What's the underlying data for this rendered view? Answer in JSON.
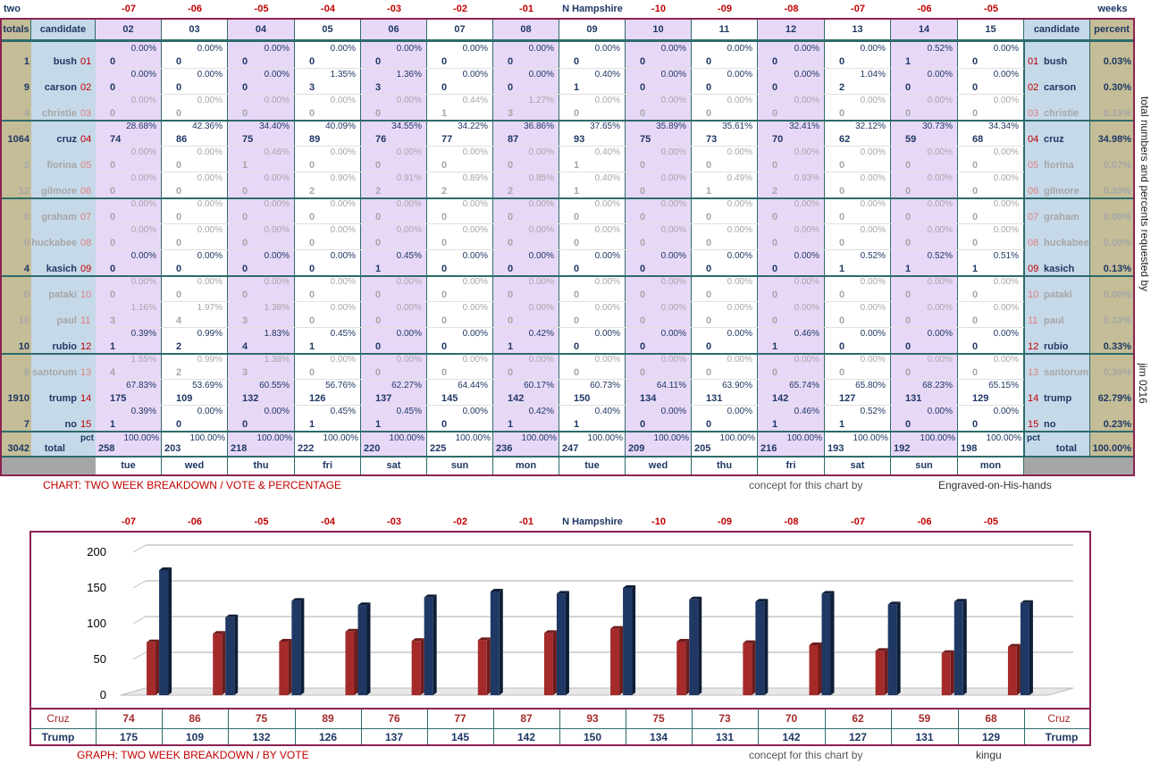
{
  "header": {
    "left": "two",
    "right": "weeks",
    "center": "N Hampshire",
    "day_offsets": [
      "-07",
      "-06",
      "-05",
      "-04",
      "-03",
      "-02",
      "-01",
      "N Hampshire",
      "-10",
      "-09",
      "-08",
      "-07",
      "-06",
      "-05"
    ]
  },
  "columns": {
    "totals": "totals",
    "candidate": "candidate",
    "percent": "percent",
    "days": [
      "02",
      "03",
      "04",
      "05",
      "06",
      "07",
      "08",
      "09",
      "10",
      "11",
      "12",
      "13",
      "14",
      "15"
    ],
    "weekdays": [
      "tue",
      "wed",
      "thu",
      "fri",
      "sat",
      "sun",
      "mon",
      "tue",
      "wed",
      "thu",
      "fri",
      "sat",
      "sun",
      "mon"
    ]
  },
  "candidates": [
    {
      "name": "bush",
      "num": "01",
      "total": "1",
      "pct": "0.03%",
      "dim": false,
      "v": [
        "0",
        "0",
        "0",
        "0",
        "0",
        "0",
        "0",
        "0",
        "0",
        "0",
        "0",
        "0",
        "1",
        "0"
      ],
      "p": [
        "0.00%",
        "0.00%",
        "0.00%",
        "0.00%",
        "0.00%",
        "0.00%",
        "0.00%",
        "0.00%",
        "0.00%",
        "0.00%",
        "0.00%",
        "0.00%",
        "0.52%",
        "0.00%"
      ]
    },
    {
      "name": "carson",
      "num": "02",
      "total": "9",
      "pct": "0.30%",
      "dim": false,
      "v": [
        "0",
        "0",
        "0",
        "3",
        "3",
        "0",
        "0",
        "1",
        "0",
        "0",
        "0",
        "2",
        "0",
        "0"
      ],
      "p": [
        "0.00%",
        "0.00%",
        "0.00%",
        "1.35%",
        "1.36%",
        "0.00%",
        "0.00%",
        "0.40%",
        "0.00%",
        "0.00%",
        "0.00%",
        "1.04%",
        "0.00%",
        "0.00%"
      ]
    },
    {
      "name": "christie",
      "num": "03",
      "total": "4",
      "pct": "0.13%",
      "dim": true,
      "v": [
        "0",
        "0",
        "0",
        "0",
        "0",
        "1",
        "3",
        "0",
        "0",
        "0",
        "0",
        "0",
        "0",
        "0"
      ],
      "p": [
        "0.00%",
        "0.00%",
        "0.00%",
        "0.00%",
        "0.00%",
        "0.44%",
        "1.27%",
        "0.00%",
        "0.00%",
        "0.00%",
        "0.00%",
        "0.00%",
        "0.00%",
        "0.00%"
      ]
    },
    {
      "name": "cruz",
      "num": "04",
      "total": "1064",
      "pct": "34.98%",
      "dim": false,
      "v": [
        "74",
        "86",
        "75",
        "89",
        "76",
        "77",
        "87",
        "93",
        "75",
        "73",
        "70",
        "62",
        "59",
        "68"
      ],
      "p": [
        "28.68%",
        "42.36%",
        "34.40%",
        "40.09%",
        "34.55%",
        "34.22%",
        "36.86%",
        "37.65%",
        "35.89%",
        "35.61%",
        "32.41%",
        "32.12%",
        "30.73%",
        "34.34%"
      ]
    },
    {
      "name": "fiorina",
      "num": "05",
      "total": "2",
      "pct": "0.07%",
      "dim": true,
      "v": [
        "0",
        "0",
        "1",
        "0",
        "0",
        "0",
        "0",
        "1",
        "0",
        "0",
        "0",
        "0",
        "0",
        "0"
      ],
      "p": [
        "0.00%",
        "0.00%",
        "0.46%",
        "0.00%",
        "0.00%",
        "0.00%",
        "0.00%",
        "0.40%",
        "0.00%",
        "0.00%",
        "0.00%",
        "0.00%",
        "0.00%",
        "0.00%"
      ]
    },
    {
      "name": "gilmore",
      "num": "06",
      "total": "12",
      "pct": "0.39%",
      "dim": true,
      "v": [
        "0",
        "0",
        "0",
        "2",
        "2",
        "2",
        "2",
        "1",
        "0",
        "1",
        "2",
        "0",
        "0",
        "0"
      ],
      "p": [
        "0.00%",
        "0.00%",
        "0.00%",
        "0.90%",
        "0.91%",
        "0.89%",
        "0.85%",
        "0.40%",
        "0.00%",
        "0.49%",
        "0.93%",
        "0.00%",
        "0.00%",
        "0.00%"
      ]
    },
    {
      "name": "graham",
      "num": "07",
      "total": "0",
      "pct": "0.00%",
      "dim": true,
      "v": [
        "0",
        "0",
        "0",
        "0",
        "0",
        "0",
        "0",
        "0",
        "0",
        "0",
        "0",
        "0",
        "0",
        "0"
      ],
      "p": [
        "0.00%",
        "0.00%",
        "0.00%",
        "0.00%",
        "0.00%",
        "0.00%",
        "0.00%",
        "0.00%",
        "0.00%",
        "0.00%",
        "0.00%",
        "0.00%",
        "0.00%",
        "0.00%"
      ]
    },
    {
      "name": "huckabee",
      "num": "08",
      "total": "0",
      "pct": "0.00%",
      "dim": true,
      "v": [
        "0",
        "0",
        "0",
        "0",
        "0",
        "0",
        "0",
        "0",
        "0",
        "0",
        "0",
        "0",
        "0",
        "0"
      ],
      "p": [
        "0.00%",
        "0.00%",
        "0.00%",
        "0.00%",
        "0.00%",
        "0.00%",
        "0.00%",
        "0.00%",
        "0.00%",
        "0.00%",
        "0.00%",
        "0.00%",
        "0.00%",
        "0.00%"
      ]
    },
    {
      "name": "kasich",
      "num": "09",
      "total": "4",
      "pct": "0.13%",
      "dim": false,
      "v": [
        "0",
        "0",
        "0",
        "0",
        "1",
        "0",
        "0",
        "0",
        "0",
        "0",
        "0",
        "1",
        "1",
        "1"
      ],
      "p": [
        "0.00%",
        "0.00%",
        "0.00%",
        "0.00%",
        "0.45%",
        "0.00%",
        "0.00%",
        "0.00%",
        "0.00%",
        "0.00%",
        "0.00%",
        "0.52%",
        "0.52%",
        "0.51%"
      ]
    },
    {
      "name": "pataki",
      "num": "10",
      "total": "0",
      "pct": "0.00%",
      "dim": true,
      "v": [
        "0",
        "0",
        "0",
        "0",
        "0",
        "0",
        "0",
        "0",
        "0",
        "0",
        "0",
        "0",
        "0",
        "0"
      ],
      "p": [
        "0.00%",
        "0.00%",
        "0.00%",
        "0.00%",
        "0.00%",
        "0.00%",
        "0.00%",
        "0.00%",
        "0.00%",
        "0.00%",
        "0.00%",
        "0.00%",
        "0.00%",
        "0.00%"
      ]
    },
    {
      "name": "paul",
      "num": "11",
      "total": "10",
      "pct": "0.33%",
      "dim": true,
      "v": [
        "3",
        "4",
        "3",
        "0",
        "0",
        "0",
        "0",
        "0",
        "0",
        "0",
        "0",
        "0",
        "0",
        "0"
      ],
      "p": [
        "1.16%",
        "1.97%",
        "1.38%",
        "0.00%",
        "0.00%",
        "0.00%",
        "0.00%",
        "0.00%",
        "0.00%",
        "0.00%",
        "0.00%",
        "0.00%",
        "0.00%",
        "0.00%"
      ]
    },
    {
      "name": "rubio",
      "num": "12",
      "total": "10",
      "pct": "0.33%",
      "dim": false,
      "v": [
        "1",
        "2",
        "4",
        "1",
        "0",
        "0",
        "1",
        "0",
        "0",
        "0",
        "1",
        "0",
        "0",
        "0"
      ],
      "p": [
        "0.39%",
        "0.99%",
        "1.83%",
        "0.45%",
        "0.00%",
        "0.00%",
        "0.42%",
        "0.00%",
        "0.00%",
        "0.00%",
        "0.46%",
        "0.00%",
        "0.00%",
        "0.00%"
      ]
    },
    {
      "name": "santorum",
      "num": "13",
      "total": "9",
      "pct": "0.30%",
      "dim": true,
      "v": [
        "4",
        "2",
        "3",
        "0",
        "0",
        "0",
        "0",
        "0",
        "0",
        "0",
        "0",
        "0",
        "0",
        "0"
      ],
      "p": [
        "1.55%",
        "0.99%",
        "1.38%",
        "0.00%",
        "0.00%",
        "0.00%",
        "0.00%",
        "0.00%",
        "0.00%",
        "0.00%",
        "0.00%",
        "0.00%",
        "0.00%",
        "0.00%"
      ]
    },
    {
      "name": "trump",
      "num": "14",
      "total": "1910",
      "pct": "62.79%",
      "dim": false,
      "v": [
        "175",
        "109",
        "132",
        "126",
        "137",
        "145",
        "142",
        "150",
        "134",
        "131",
        "142",
        "127",
        "131",
        "129"
      ],
      "p": [
        "67.83%",
        "53.69%",
        "60.55%",
        "56.76%",
        "62.27%",
        "64.44%",
        "60.17%",
        "60.73%",
        "64.11%",
        "63.90%",
        "65.74%",
        "65.80%",
        "68.23%",
        "65.15%"
      ]
    },
    {
      "name": "no",
      "num": "15",
      "total": "7",
      "pct": "0.23%",
      "dim": false,
      "v": [
        "1",
        "0",
        "0",
        "1",
        "1",
        "0",
        "1",
        "1",
        "0",
        "0",
        "1",
        "1",
        "0",
        "0"
      ],
      "p": [
        "0.39%",
        "0.00%",
        "0.00%",
        "0.45%",
        "0.45%",
        "0.00%",
        "0.42%",
        "0.40%",
        "0.00%",
        "0.00%",
        "0.46%",
        "0.52%",
        "0.00%",
        "0.00%"
      ]
    }
  ],
  "totals_row": {
    "grand_total": "3042",
    "label": "total",
    "pct_label": "pct",
    "values": [
      "258",
      "203",
      "218",
      "222",
      "220",
      "225",
      "236",
      "247",
      "209",
      "205",
      "216",
      "193",
      "192",
      "198"
    ],
    "pct": "100.00%",
    "grand_pct": "100.00%"
  },
  "side_note": "total numbers and percents requested by",
  "side_note2": "jim 0216",
  "footer1": {
    "title": "CHART: TWO WEEK BREAKDOWN / VOTE & PERCENTAGE",
    "concept": "concept for this chart by",
    "author": "Engraved-on-His-hands"
  },
  "footer2": {
    "title": "GRAPH: TWO WEEK BREAKDOWN / BY VOTE",
    "concept": "concept for this chart by",
    "author": "kingu"
  },
  "colors": {
    "cruz_bar": "#a52a2a",
    "trump_bar": "#1f3864",
    "frame": "#8b2252",
    "teal": "#2e6b6b",
    "tan": "#c4bd97",
    "lavender": "#e8d8f8",
    "blue": "#c6d9e9"
  },
  "chart_data": {
    "type": "bar",
    "categories": [
      "-07",
      "-06",
      "-05",
      "-04",
      "-03",
      "-02",
      "-01",
      "N Hampshire",
      "-10",
      "-09",
      "-08",
      "-07",
      "-06",
      "-05"
    ],
    "series": [
      {
        "name": "Cruz",
        "values": [
          74,
          86,
          75,
          89,
          76,
          77,
          87,
          93,
          75,
          73,
          70,
          62,
          59,
          68
        ]
      },
      {
        "name": "Trump",
        "values": [
          175,
          109,
          132,
          126,
          137,
          145,
          142,
          150,
          134,
          131,
          142,
          127,
          131,
          129
        ]
      }
    ],
    "yticks": [
      "0",
      "50",
      "100",
      "150",
      "200"
    ],
    "ylim": [
      0,
      200
    ],
    "grid": true
  }
}
